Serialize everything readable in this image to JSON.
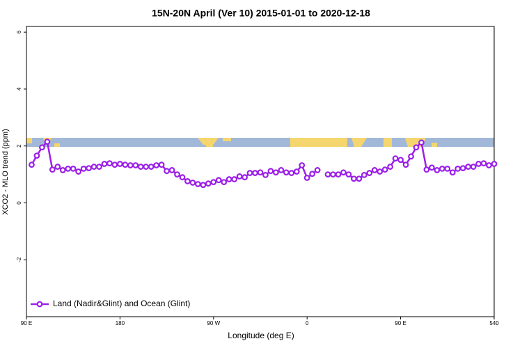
{
  "chart_data": {
    "type": "line",
    "title": "15N-20N April (Ver 10)   2015-01-01 to 2020-12-18",
    "x_label": "Longitude (deg E)",
    "y_label": "XCO2 - MLO trend (ppm)",
    "x": [
      95,
      100,
      105,
      110,
      115,
      120,
      125,
      130,
      135,
      140,
      145,
      150,
      155,
      160,
      165,
      170,
      175,
      180,
      185,
      190,
      195,
      200,
      205,
      210,
      215,
      220,
      225,
      230,
      235,
      240,
      245,
      250,
      255,
      260,
      265,
      270,
      275,
      280,
      285,
      290,
      295,
      300,
      305,
      310,
      315,
      320,
      325,
      330,
      335,
      340,
      345,
      350,
      355,
      360,
      365,
      370,
      375,
      380,
      385,
      390,
      395,
      400,
      405,
      410,
      415,
      420,
      425,
      430,
      435,
      440,
      445,
      450,
      455,
      460,
      465,
      470,
      475,
      480,
      485,
      490,
      495,
      500,
      505,
      510,
      515,
      520,
      525,
      530,
      535,
      540
    ],
    "series": [
      {
        "name": "Land (Nadir&Glint) and Ocean (Glint)",
        "color": "#9b1fe8",
        "values": [
          1.34,
          1.66,
          1.95,
          2.15,
          1.17,
          1.27,
          1.15,
          1.2,
          1.2,
          1.1,
          1.2,
          1.22,
          1.27,
          1.27,
          1.37,
          1.39,
          1.34,
          1.37,
          1.34,
          1.32,
          1.32,
          1.27,
          1.27,
          1.27,
          1.32,
          1.34,
          1.12,
          1.15,
          1.0,
          0.9,
          0.76,
          0.71,
          0.66,
          0.63,
          0.68,
          0.73,
          0.8,
          0.73,
          0.83,
          0.83,
          0.93,
          0.9,
          1.05,
          1.05,
          1.07,
          0.98,
          1.12,
          1.07,
          1.15,
          1.07,
          1.05,
          1.1,
          1.32,
          0.88,
          1.02,
          1.15,
          null,
          1.0,
          1.0,
          1.0,
          1.07,
          1.0,
          0.85,
          0.85,
          0.98,
          1.05,
          1.15,
          1.1,
          1.17,
          1.27,
          1.56,
          1.51,
          1.34,
          1.63,
          1.95,
          2.12,
          1.17,
          1.24,
          1.15,
          1.2,
          1.2,
          1.07,
          1.2,
          1.22,
          1.27,
          1.27,
          1.37,
          1.39,
          1.32,
          1.37
        ]
      }
    ],
    "xlim": [
      90,
      540
    ],
    "ylim": [
      -4,
      6.2
    ],
    "xticks": [
      {
        "value": 90,
        "label": "90 E"
      },
      180,
      {
        "value": 270,
        "label": "90 W"
      },
      {
        "value": 360,
        "label": "0"
      },
      {
        "value": 450,
        "label": "90 E"
      },
      540
    ],
    "yticks": [
      -2,
      0,
      2,
      4,
      6
    ],
    "legend": "bottomleft"
  }
}
